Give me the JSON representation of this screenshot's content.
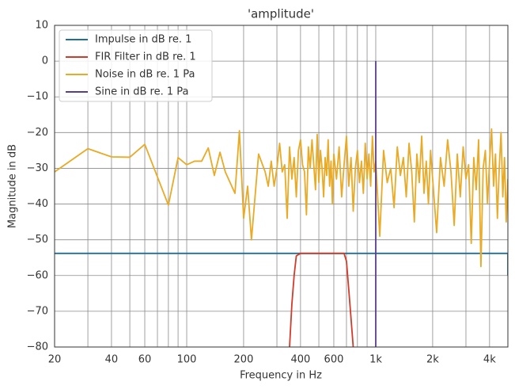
{
  "chart_data": {
    "type": "line",
    "title": "'amplitude'",
    "x_label": "Frequency in Hz",
    "y_label": "Magnitude in dB",
    "xscale": "log",
    "grid": true,
    "legend": "upper left",
    "xlim": [
      20,
      5000
    ],
    "ylim": [
      -80,
      10
    ],
    "xticks": [
      20,
      40,
      60,
      100,
      200,
      400,
      600,
      {
        "value": 1000,
        "label": "1k"
      },
      {
        "value": 2000,
        "label": "2k"
      },
      {
        "value": 4000,
        "label": "4k"
      }
    ],
    "xminorticks": [
      30,
      50,
      70,
      80,
      90,
      300,
      500,
      700,
      800,
      900,
      3000
    ],
    "yticks": [
      10,
      0,
      {
        "value": -10,
        "label": "−10"
      },
      {
        "value": -20,
        "label": "−20"
      },
      {
        "value": -30,
        "label": "−30"
      },
      {
        "value": -40,
        "label": "−40"
      },
      {
        "value": -50,
        "label": "−50"
      },
      {
        "value": -60,
        "label": "−60"
      },
      {
        "value": -70,
        "label": "−70"
      },
      {
        "value": -80,
        "label": "−80"
      }
    ],
    "series": [
      {
        "name": "Impulse in dB re. 1",
        "color": "#1f6e9c",
        "x": [
          20,
          5000,
          5000
        ],
        "values": [
          -53.8,
          -53.8,
          -60
        ]
      },
      {
        "name": "FIR Filter in dB re. 1",
        "color": "#d23b2a",
        "x": [
          350,
          360,
          370,
          380,
          400,
          500,
          600,
          680,
          700,
          720,
          740,
          760
        ],
        "values": [
          -80,
          -68,
          -60,
          -54.5,
          -53.8,
          -53.8,
          -53.8,
          -53.8,
          -56,
          -64,
          -72,
          -80
        ]
      },
      {
        "name": "Noise in dB re. 1 Pa",
        "color": "#e9aa26",
        "x": [
          20,
          30,
          40,
          50,
          60,
          80,
          90,
          100,
          110,
          120,
          130,
          140,
          150,
          160,
          180,
          190,
          200,
          210,
          220,
          240,
          260,
          270,
          280,
          290,
          300,
          310,
          320,
          330,
          340,
          350,
          360,
          370,
          380,
          390,
          400,
          410,
          420,
          430,
          440,
          450,
          460,
          470,
          480,
          490,
          500,
          510,
          520,
          530,
          540,
          550,
          560,
          570,
          580,
          590,
          600,
          620,
          640,
          660,
          680,
          700,
          720,
          740,
          760,
          780,
          800,
          820,
          840,
          860,
          880,
          900,
          920,
          940,
          960,
          980,
          1000,
          1050,
          1100,
          1150,
          1200,
          1250,
          1300,
          1350,
          1400,
          1450,
          1500,
          1550,
          1600,
          1650,
          1700,
          1750,
          1800,
          1850,
          1900,
          1950,
          2000,
          2100,
          2200,
          2300,
          2400,
          2500,
          2600,
          2700,
          2800,
          2900,
          3000,
          3100,
          3200,
          3300,
          3400,
          3500,
          3600,
          3700,
          3800,
          3900,
          4000,
          4100,
          4200,
          4300,
          4400,
          4500,
          4600,
          4700,
          4800,
          4900,
          5000
        ],
        "values": [
          -31,
          -24.5,
          -26.8,
          -26.9,
          -23.3,
          -40.3,
          -27,
          -29,
          -28,
          -28,
          -24.3,
          -32,
          -25.5,
          -31,
          -37,
          -19.5,
          -44,
          -35,
          -50,
          -26,
          -31,
          -35,
          -28,
          -35,
          -30,
          -23,
          -31,
          -29,
          -44,
          -24,
          -33,
          -27,
          -38,
          -25,
          -22,
          -29,
          -31,
          -43,
          -24,
          -30,
          -22,
          -29,
          -36,
          -20.5,
          -34,
          -25,
          -30,
          -38,
          -27,
          -32,
          -22,
          -35,
          -28,
          -40,
          -26,
          -33,
          -24,
          -38,
          -29,
          -21,
          -35,
          -27,
          -42,
          -30,
          -25,
          -34,
          -28,
          -37,
          -23,
          -33,
          -26,
          -35,
          -21,
          -31,
          -28,
          -49,
          -25,
          -34,
          -30,
          -41,
          -24,
          -32,
          -27,
          -38,
          -23,
          -31,
          -45,
          -26,
          -34,
          -21,
          -37,
          -28,
          -40,
          -25,
          -33,
          -48,
          -27,
          -35,
          -22,
          -31,
          -46,
          -26,
          -38,
          -24,
          -33,
          -29,
          -51,
          -27,
          -36,
          -22,
          -57.5,
          -30,
          -25,
          -40,
          -28,
          -19,
          -35,
          -26,
          -44,
          -30,
          -20,
          -38,
          -27,
          -45,
          -33
        ]
      },
      {
        "name": "Sine in dB re. 1 Pa",
        "color": "#5a3e8e",
        "x": [
          1000,
          1000
        ],
        "values": [
          -80,
          0
        ]
      }
    ]
  }
}
